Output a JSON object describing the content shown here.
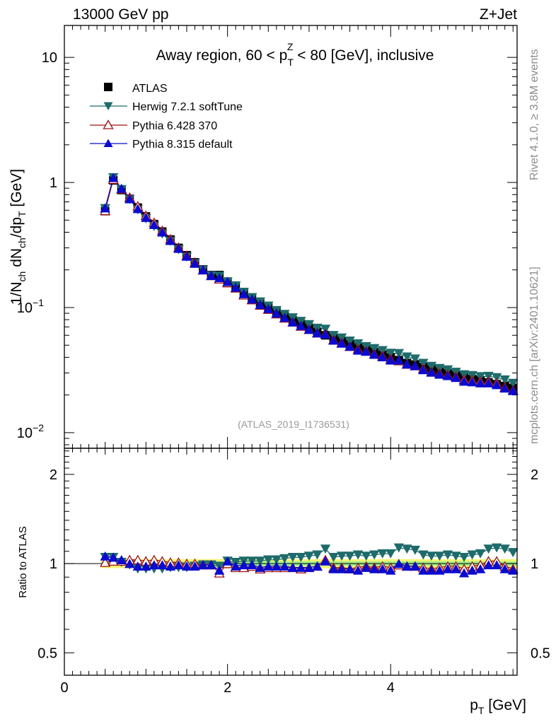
{
  "header": {
    "energy": "13000 GeV pp",
    "process": "Z+Jet"
  },
  "side_labels": {
    "rivet": "Rivet 4.1.0, ≥ 3.8M events",
    "source": "mcplots.cern.ch [arXiv:2401.10621]"
  },
  "chart_data": [
    {
      "type": "line",
      "panel": "main",
      "title": "Away region, 60 < p_T^Z < 80 [GeV], inclusive",
      "title_parts": {
        "pre": "Away region, 60 < p",
        "sub": "T",
        "sup": "Z",
        "post": " < 80 [GeV], inclusive"
      },
      "analysis_id": "(ATLAS_2019_I1736531)",
      "ylabel": "1/N_ch dN_ch/dp_T [GeV]",
      "ylabel_parts": {
        "a": "1/N",
        "a_sub": "ch",
        "b": " dN",
        "b_sub": "ch",
        "c": "/dp",
        "c_sub": "T",
        "d": " [GeV]"
      },
      "xlabel": "p_T [GeV]",
      "xlabel_parts": {
        "main": "p",
        "sub": "T",
        "unit": " [GeV]"
      },
      "yscale": "log",
      "xlim": [
        0,
        5.55
      ],
      "ylim": [
        0.0075,
        18
      ],
      "y_ticks": [
        {
          "value": 10,
          "label": "10"
        },
        {
          "value": 1,
          "label": "1"
        },
        {
          "value": 0.1,
          "label": "10",
          "exp": "−1"
        },
        {
          "value": 0.01,
          "label": "10",
          "exp": "−2"
        }
      ],
      "x_ticks": [
        {
          "value": 0,
          "label": "0"
        },
        {
          "value": 2,
          "label": "2"
        },
        {
          "value": 4,
          "label": "4"
        }
      ],
      "x": [
        0.5,
        0.6,
        0.7,
        0.8,
        0.9,
        1.0,
        1.1,
        1.2,
        1.3,
        1.4,
        1.5,
        1.6,
        1.7,
        1.8,
        1.9,
        2.0,
        2.1,
        2.2,
        2.3,
        2.4,
        2.5,
        2.6,
        2.7,
        2.8,
        2.9,
        3.0,
        3.1,
        3.2,
        3.3,
        3.4,
        3.5,
        3.6,
        3.7,
        3.8,
        3.9,
        4.0,
        4.1,
        4.2,
        4.3,
        4.4,
        4.5,
        4.6,
        4.7,
        4.8,
        4.9,
        5.0,
        5.1,
        5.2,
        5.3,
        5.4,
        5.5
      ],
      "legend_position": "top-left",
      "series": [
        {
          "name": "ATLAS",
          "color": "#000000",
          "marker": "square",
          "values": [
            0.59,
            1.04,
            0.87,
            0.74,
            0.63,
            0.535,
            0.465,
            0.405,
            0.35,
            0.3,
            0.262,
            0.23,
            0.202,
            0.182,
            0.182,
            0.158,
            0.148,
            0.13,
            0.118,
            0.109,
            0.1,
            0.092,
            0.085,
            0.079,
            0.074,
            0.069,
            0.064,
            0.06,
            0.057,
            0.054,
            0.051,
            0.048,
            0.046,
            0.044,
            0.042,
            0.04,
            0.038,
            0.036,
            0.035,
            0.0335,
            0.032,
            0.0308,
            0.0297,
            0.0287,
            0.0277,
            0.0268,
            0.026,
            0.0252,
            0.0244,
            0.0236,
            0.0228
          ]
        },
        {
          "name": "Herwig 7.2.1 softTune",
          "color": "#1f6b6b",
          "marker": "triangle-down",
          "ratios": [
            1.05,
            1.05,
            1.01,
            0.99,
            0.96,
            0.96,
            0.96,
            0.96,
            0.97,
            0.97,
            0.97,
            0.98,
            0.99,
            0.99,
            0.98,
            1.02,
            1.01,
            1.02,
            1.02,
            1.02,
            1.03,
            1.03,
            1.04,
            1.05,
            1.05,
            1.06,
            1.07,
            1.12,
            1.05,
            1.06,
            1.06,
            1.07,
            1.06,
            1.07,
            1.08,
            1.08,
            1.13,
            1.12,
            1.11,
            1.07,
            1.06,
            1.06,
            1.07,
            1.06,
            1.05,
            1.07,
            1.08,
            1.12,
            1.13,
            1.12,
            1.09
          ]
        },
        {
          "name": "Pythia 6.428 370",
          "color": "#a01010",
          "marker": "triangle-up-open",
          "ratios": [
            1.01,
            1.02,
            1.02,
            1.03,
            1.03,
            1.02,
            1.03,
            1.02,
            1.01,
            1.01,
            1.0,
            1.0,
            0.99,
            0.99,
            0.93,
            1.0,
            0.97,
            0.97,
            0.98,
            0.96,
            0.97,
            0.97,
            0.97,
            0.97,
            0.96,
            0.97,
            0.98,
            1.03,
            0.97,
            0.97,
            0.96,
            0.97,
            0.98,
            0.97,
            0.98,
            0.97,
            0.99,
            0.98,
            0.98,
            0.97,
            0.96,
            0.97,
            0.98,
            0.98,
            0.96,
            0.98,
            0.99,
            1.02,
            1.02,
            0.98,
            0.96
          ]
        },
        {
          "name": "Pythia 8.315 default",
          "color": "#0a0ad0",
          "marker": "triangle-up",
          "ratios": [
            1.06,
            1.05,
            1.03,
            1.0,
            0.98,
            0.98,
            0.99,
            0.99,
            0.98,
            0.99,
            0.98,
            0.98,
            0.99,
            0.99,
            0.95,
            1.02,
            0.98,
            0.99,
            0.99,
            0.97,
            0.98,
            0.98,
            0.98,
            0.97,
            0.97,
            0.97,
            0.98,
            1.02,
            0.96,
            0.96,
            0.96,
            0.95,
            0.97,
            0.96,
            0.96,
            0.95,
            1.0,
            0.98,
            0.98,
            0.95,
            0.95,
            0.95,
            0.96,
            0.96,
            0.93,
            0.95,
            0.96,
            0.99,
            0.99,
            0.96,
            0.95
          ]
        }
      ]
    },
    {
      "type": "line",
      "panel": "ratio",
      "ylabel": "Ratio to ATLAS",
      "yscale": "log",
      "ylim": [
        0.42,
        2.45
      ],
      "y_ticks": [
        {
          "value": 2,
          "label": "2"
        },
        {
          "value": 1,
          "label": "1"
        },
        {
          "value": 0.5,
          "label": "0.5"
        }
      ],
      "reference_line": 1.0,
      "bands": [
        {
          "name": "stat",
          "color": "#f5f573",
          "half_width": 0.035
        },
        {
          "name": "syst",
          "color": "#9cf08a",
          "half_width": 0.017
        }
      ]
    }
  ]
}
